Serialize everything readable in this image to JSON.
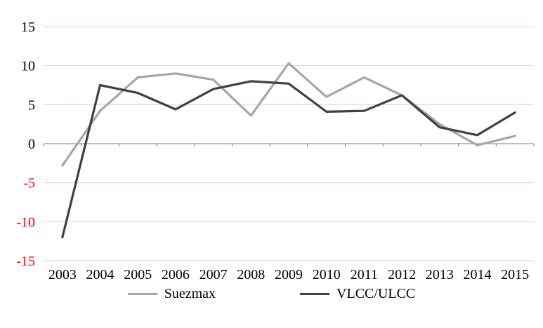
{
  "chart_data": {
    "type": "line",
    "title": "",
    "xlabel": "",
    "ylabel": "",
    "categories": [
      "2003",
      "2004",
      "2005",
      "2006",
      "2007",
      "2008",
      "2009",
      "2010",
      "2011",
      "2012",
      "2013",
      "2014",
      "2015"
    ],
    "series": [
      {
        "name": "Suezmax",
        "color": "#a6a6a6",
        "values": [
          -2.8,
          4.2,
          8.5,
          9.0,
          8.2,
          3.6,
          10.3,
          6.0,
          8.5,
          6.2,
          2.5,
          -0.2,
          1.0
        ]
      },
      {
        "name": "VLCC/ULCC",
        "color": "#404040",
        "values": [
          -12.0,
          7.5,
          6.5,
          4.4,
          7.0,
          8.0,
          7.7,
          4.1,
          4.2,
          6.2,
          2.1,
          1.1,
          4.0
        ]
      }
    ],
    "ylim": [
      -15,
      15
    ],
    "yticks": [
      15,
      10,
      5,
      0,
      -5,
      -10,
      -15
    ],
    "tick_color_positive": "#000000",
    "negative_tick_color": "#ff0000",
    "gridline_color": "#e3d3d3",
    "zero_line_color": "#7f7f7f",
    "grid": true,
    "legend_position": "bottom"
  }
}
